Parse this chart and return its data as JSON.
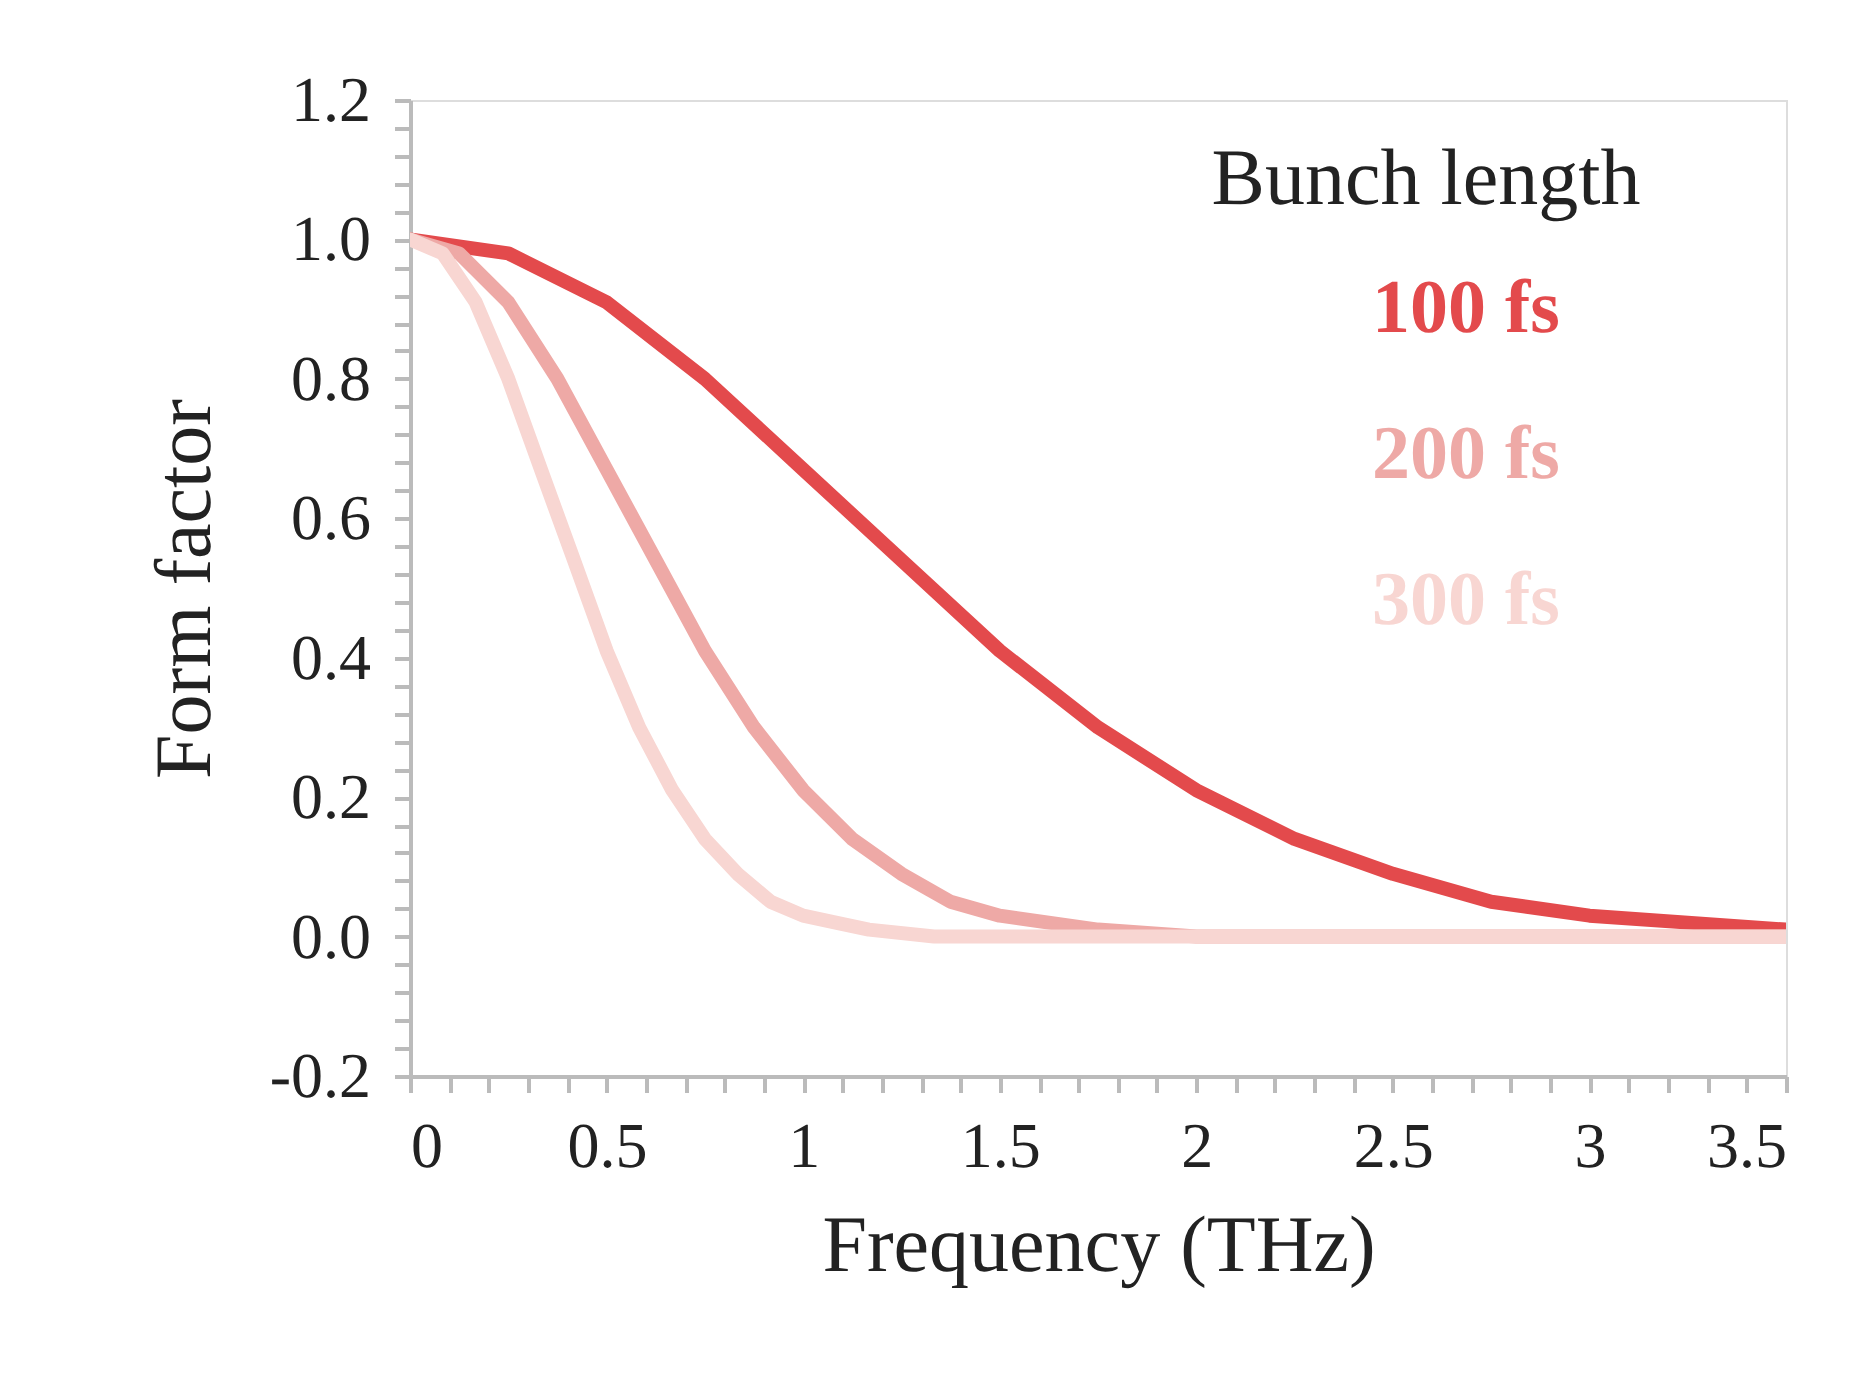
{
  "chart_data": {
    "type": "line",
    "xlabel": "Frequency (THz)",
    "ylabel": "Form factor",
    "legend_title": "Bunch length",
    "legend": "top right",
    "grid": false,
    "marker": "none",
    "line_style": "solid",
    "xlim": [
      0,
      3.5
    ],
    "ylim": [
      -0.2,
      1.2
    ],
    "xticks": [
      0,
      {
        "value": 0.1,
        "label": null
      },
      {
        "value": 0.2,
        "label": null
      },
      {
        "value": 0.3,
        "label": null
      },
      {
        "value": 0.4,
        "label": null
      },
      0.5,
      {
        "value": 0.6,
        "label": null
      },
      {
        "value": 0.7,
        "label": null
      },
      {
        "value": 0.8,
        "label": null
      },
      {
        "value": 0.9,
        "label": null
      },
      1,
      {
        "value": 1.1,
        "label": null
      },
      {
        "value": 1.2,
        "label": null
      },
      {
        "value": 1.3,
        "label": null
      },
      {
        "value": 1.4,
        "label": null
      },
      1.5,
      {
        "value": 1.6,
        "label": null
      },
      {
        "value": 1.7,
        "label": null
      },
      {
        "value": 1.8,
        "label": null
      },
      {
        "value": 1.9,
        "label": null
      },
      2,
      {
        "value": 2.1,
        "label": null
      },
      {
        "value": 2.2,
        "label": null
      },
      {
        "value": 2.3,
        "label": null
      },
      {
        "value": 2.4,
        "label": null
      },
      2.5,
      {
        "value": 2.6,
        "label": null
      },
      {
        "value": 2.7,
        "label": null
      },
      {
        "value": 2.8,
        "label": null
      },
      {
        "value": 2.9,
        "label": null
      },
      3,
      {
        "value": 3.1,
        "label": null
      },
      {
        "value": 3.2,
        "label": null
      },
      {
        "value": 3.3,
        "label": null
      },
      {
        "value": 3.4,
        "label": null
      },
      3.5
    ],
    "yticks": [
      -0.2,
      {
        "value": -0.16,
        "label": null
      },
      {
        "value": -0.12,
        "label": null
      },
      {
        "value": -0.08,
        "label": null
      },
      {
        "value": -0.04,
        "label": null
      },
      {
        "value": 0,
        "label": "0.0"
      },
      {
        "value": 0.04,
        "label": null
      },
      {
        "value": 0.08,
        "label": null
      },
      {
        "value": 0.12,
        "label": null
      },
      {
        "value": 0.16,
        "label": null
      },
      0.2,
      {
        "value": 0.24,
        "label": null
      },
      {
        "value": 0.28,
        "label": null
      },
      {
        "value": 0.32,
        "label": null
      },
      {
        "value": 0.36,
        "label": null
      },
      0.4,
      {
        "value": 0.44,
        "label": null
      },
      {
        "value": 0.48,
        "label": null
      },
      {
        "value": 0.52,
        "label": null
      },
      {
        "value": 0.56,
        "label": null
      },
      0.6,
      {
        "value": 0.64,
        "label": null
      },
      {
        "value": 0.68,
        "label": null
      },
      {
        "value": 0.72,
        "label": null
      },
      {
        "value": 0.76,
        "label": null
      },
      0.8,
      {
        "value": 0.84,
        "label": null
      },
      {
        "value": 0.88,
        "label": null
      },
      {
        "value": 0.92,
        "label": null
      },
      {
        "value": 0.96,
        "label": null
      },
      {
        "value": 1,
        "label": "1.0"
      },
      {
        "value": 1.04,
        "label": null
      },
      {
        "value": 1.08,
        "label": null
      },
      {
        "value": 1.12,
        "label": null
      },
      {
        "value": 1.16,
        "label": null
      },
      1.2
    ],
    "series": [
      {
        "name": "100 fs",
        "color": "#e34a4c",
        "x": [
          0,
          0.25,
          0.5,
          0.75,
          1,
          1.25,
          1.5,
          1.75,
          2,
          2.25,
          2.5,
          2.75,
          3,
          3.25,
          3.5
        ],
        "values": [
          1,
          0.98,
          0.91,
          0.8,
          0.67,
          0.54,
          0.41,
          0.3,
          0.21,
          0.14,
          0.09,
          0.05,
          0.03,
          0.02,
          0.01
        ]
      },
      {
        "name": "200 fs",
        "color": "#eea9a6",
        "x": [
          0,
          0.125,
          0.25,
          0.375,
          0.5,
          0.625,
          0.75,
          0.875,
          1,
          1.125,
          1.25,
          1.375,
          1.5,
          1.75,
          2,
          2.5,
          3,
          3.5
        ],
        "values": [
          1,
          0.98,
          0.91,
          0.8,
          0.67,
          0.54,
          0.41,
          0.3,
          0.21,
          0.14,
          0.09,
          0.05,
          0.03,
          0.01,
          0,
          0,
          0,
          0
        ]
      },
      {
        "name": "300 fs",
        "color": "#f8d6d2",
        "x": [
          0,
          0.083,
          0.167,
          0.25,
          0.333,
          0.417,
          0.5,
          0.583,
          0.667,
          0.75,
          0.833,
          0.917,
          1,
          1.083,
          1.167,
          1.333,
          1.5,
          2,
          2.5,
          3,
          3.5
        ],
        "values": [
          1,
          0.98,
          0.91,
          0.8,
          0.67,
          0.54,
          0.41,
          0.3,
          0.21,
          0.14,
          0.09,
          0.05,
          0.03,
          0.02,
          0.01,
          0,
          0,
          0,
          0,
          0,
          0
        ]
      }
    ]
  }
}
